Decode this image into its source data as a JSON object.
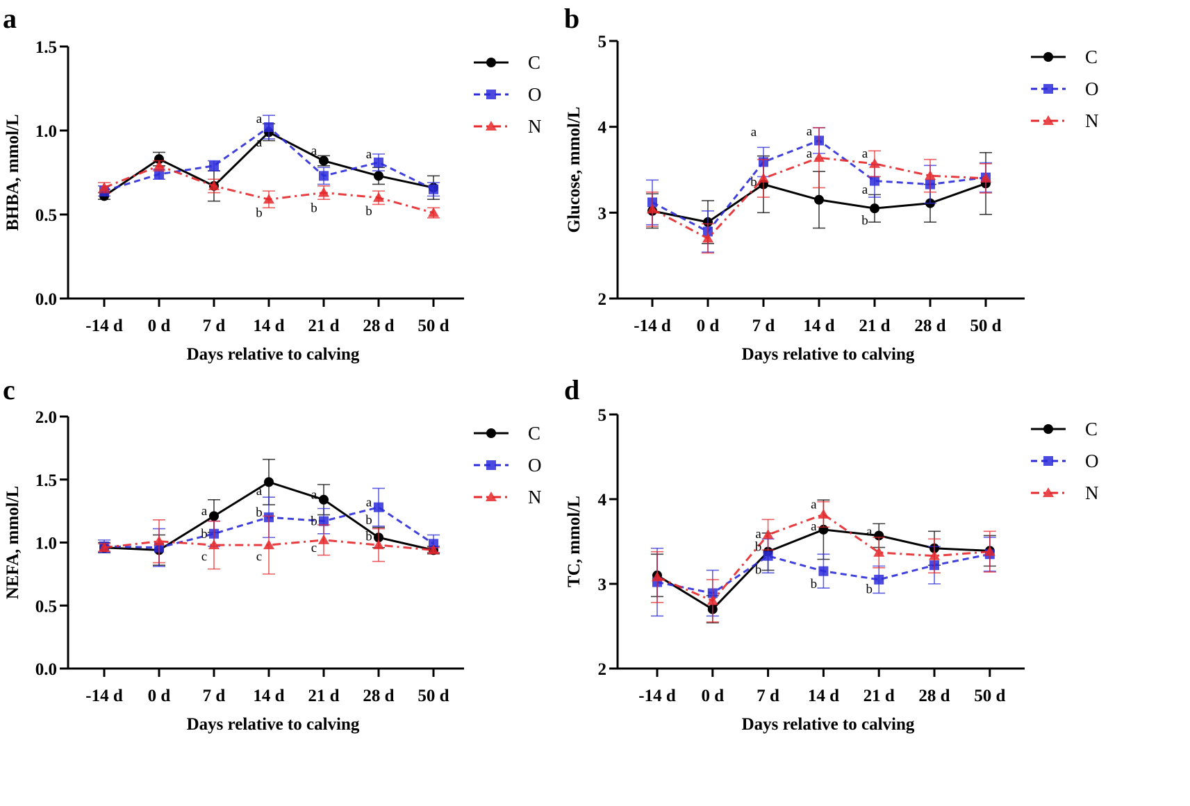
{
  "chart_data": [
    {
      "type": "line",
      "panel_label": "a",
      "xlabel": "Days relative to calving",
      "ylabel": "BHBA, mmol/L",
      "ylim": [
        0,
        1.5
      ],
      "yticks": [
        "0.0",
        "0.5",
        "1.0",
        "1.5"
      ],
      "categories": [
        "-14 d",
        "0 d",
        "7 d",
        "14 d",
        "21 d",
        "28 d",
        "50 d"
      ],
      "legend_position": "top-right",
      "series": [
        {
          "name": "C",
          "color": "#000000",
          "marker": "circle",
          "dash": "solid",
          "values": [
            0.61,
            0.83,
            0.67,
            0.99,
            0.82,
            0.73,
            0.66
          ],
          "errors": [
            0.02,
            0.04,
            0.09,
            0.05,
            0.03,
            0.05,
            0.07
          ]
        },
        {
          "name": "O",
          "color": "#2b2bd9",
          "marker": "square",
          "dash": "dashed",
          "values": [
            0.64,
            0.74,
            0.79,
            1.02,
            0.73,
            0.81,
            0.65
          ],
          "errors": [
            0.03,
            0.03,
            0.03,
            0.07,
            0.05,
            0.05,
            0.04
          ]
        },
        {
          "name": "N",
          "color": "#e5282b",
          "marker": "triangle",
          "dash": "dashdot",
          "values": [
            0.66,
            0.79,
            0.67,
            0.59,
            0.63,
            0.6,
            0.51
          ],
          "errors": [
            0.03,
            0.03,
            0.04,
            0.05,
            0.04,
            0.04,
            0.03
          ]
        }
      ],
      "annotations": [
        {
          "text": "a",
          "x": "14 d",
          "y": 1.07
        },
        {
          "text": "a",
          "x": "14 d",
          "y": 0.93
        },
        {
          "text": "b",
          "x": "14 d",
          "y": 0.51
        },
        {
          "text": "a",
          "x": "21 d",
          "y": 0.88
        },
        {
          "text": "b",
          "x": "21 d",
          "y": 0.54
        },
        {
          "text": "a",
          "x": "28 d",
          "y": 0.86
        },
        {
          "text": "b",
          "x": "28 d",
          "y": 0.52
        }
      ]
    },
    {
      "type": "line",
      "panel_label": "b",
      "xlabel": "Days relative to calving",
      "ylabel": "Glucose, mmol/L",
      "ylim": [
        2,
        5
      ],
      "yticks": [
        "2",
        "3",
        "4",
        "5"
      ],
      "categories": [
        "-14 d",
        "0 d",
        "7 d",
        "14 d",
        "21 d",
        "28 d",
        "50 d"
      ],
      "legend_position": "top-right",
      "series": [
        {
          "name": "C",
          "color": "#000000",
          "marker": "circle",
          "dash": "solid",
          "values": [
            3.02,
            2.89,
            3.33,
            3.15,
            3.05,
            3.11,
            3.34
          ],
          "errors": [
            0.2,
            0.25,
            0.33,
            0.33,
            0.16,
            0.22,
            0.36
          ]
        },
        {
          "name": "O",
          "color": "#2b2bd9",
          "marker": "square",
          "dash": "dashed",
          "values": [
            3.12,
            2.78,
            3.59,
            3.84,
            3.37,
            3.33,
            3.41
          ],
          "errors": [
            0.26,
            0.24,
            0.17,
            0.15,
            0.19,
            0.22,
            0.17
          ]
        },
        {
          "name": "N",
          "color": "#e5282b",
          "marker": "triangle",
          "dash": "dashdot",
          "values": [
            3.04,
            2.7,
            3.4,
            3.64,
            3.57,
            3.43,
            3.4
          ],
          "errors": [
            0.2,
            0.17,
            0.22,
            0.35,
            0.15,
            0.19,
            0.17
          ]
        }
      ],
      "annotations": [
        {
          "text": "a",
          "x": "7 d",
          "y": 3.94
        },
        {
          "text": "b",
          "x": "7 d",
          "y": 3.36
        },
        {
          "text": "a",
          "x": "14 d",
          "y": 3.95
        },
        {
          "text": "a",
          "x": "14 d",
          "y": 3.69
        },
        {
          "text": "a",
          "x": "21 d",
          "y": 3.69
        },
        {
          "text": "a",
          "x": "21 d",
          "y": 3.27
        },
        {
          "text": "b",
          "x": "21 d",
          "y": 2.91
        }
      ]
    },
    {
      "type": "line",
      "panel_label": "c",
      "xlabel": "Days relative to calving",
      "ylabel": "NEFA, mmol/L",
      "ylim": [
        0,
        2
      ],
      "yticks": [
        "0.0",
        "0.5",
        "1.0",
        "1.5",
        "2.0"
      ],
      "categories": [
        "-14 d",
        "0 d",
        "7 d",
        "14 d",
        "21 d",
        "28 d",
        "50 d"
      ],
      "legend_position": "top-right",
      "series": [
        {
          "name": "C",
          "color": "#000000",
          "marker": "circle",
          "dash": "solid",
          "values": [
            0.96,
            0.94,
            1.21,
            1.48,
            1.34,
            1.04,
            0.94
          ],
          "errors": [
            0.04,
            0.12,
            0.13,
            0.18,
            0.12,
            0.08,
            0.03
          ]
        },
        {
          "name": "O",
          "color": "#2b2bd9",
          "marker": "square",
          "dash": "dashed",
          "values": [
            0.97,
            0.96,
            1.07,
            1.2,
            1.17,
            1.28,
            0.99
          ],
          "errors": [
            0.05,
            0.15,
            0.1,
            0.16,
            0.1,
            0.15,
            0.07
          ]
        },
        {
          "name": "N",
          "color": "#e5282b",
          "marker": "triangle",
          "dash": "dashdot",
          "values": [
            0.96,
            1.01,
            0.98,
            0.98,
            1.02,
            0.98,
            0.94
          ],
          "errors": [
            0.03,
            0.17,
            0.19,
            0.23,
            0.12,
            0.13,
            0.02
          ]
        }
      ],
      "annotations": [
        {
          "text": "a",
          "x": "7 d",
          "y": 1.25
        },
        {
          "text": "b",
          "x": "7 d",
          "y": 1.07
        },
        {
          "text": "c",
          "x": "7 d",
          "y": 0.89
        },
        {
          "text": "a",
          "x": "14 d",
          "y": 1.41
        },
        {
          "text": "b",
          "x": "14 d",
          "y": 1.24
        },
        {
          "text": "c",
          "x": "14 d",
          "y": 0.89
        },
        {
          "text": "a",
          "x": "21 d",
          "y": 1.38
        },
        {
          "text": "b",
          "x": "21 d",
          "y": 1.17
        },
        {
          "text": "c",
          "x": "21 d",
          "y": 0.96
        },
        {
          "text": "a",
          "x": "28 d",
          "y": 1.32
        },
        {
          "text": "b",
          "x": "28 d",
          "y": 1.18
        },
        {
          "text": "b",
          "x": "28 d",
          "y": 1.05
        }
      ]
    },
    {
      "type": "line",
      "panel_label": "d",
      "xlabel": "Days relative to calving",
      "ylabel": "TC, mmol/L",
      "ylim": [
        2,
        5
      ],
      "yticks": [
        "2",
        "3",
        "4",
        "5"
      ],
      "categories": [
        "-14 d",
        "0 d",
        "7 d",
        "14 d",
        "21 d",
        "28 d",
        "50 d"
      ],
      "legend_position": "top-right",
      "series": [
        {
          "name": "C",
          "color": "#000000",
          "marker": "circle",
          "dash": "solid",
          "values": [
            3.1,
            2.7,
            3.38,
            3.64,
            3.57,
            3.42,
            3.39
          ],
          "errors": [
            0.25,
            0.16,
            0.22,
            0.35,
            0.14,
            0.2,
            0.18
          ]
        },
        {
          "name": "O",
          "color": "#2b2bd9",
          "marker": "square",
          "dash": "dashed",
          "values": [
            3.02,
            2.89,
            3.33,
            3.15,
            3.05,
            3.22,
            3.35
          ],
          "errors": [
            0.4,
            0.27,
            0.2,
            0.2,
            0.16,
            0.22,
            0.2
          ]
        },
        {
          "name": "N",
          "color": "#e5282b",
          "marker": "triangle",
          "dash": "dashdot",
          "values": [
            3.08,
            2.8,
            3.58,
            3.82,
            3.37,
            3.33,
            3.38
          ],
          "errors": [
            0.3,
            0.25,
            0.18,
            0.15,
            0.18,
            0.2,
            0.24
          ]
        }
      ],
      "annotations": [
        {
          "text": "a",
          "x": "7 d",
          "y": 3.59
        },
        {
          "text": "b",
          "x": "7 d",
          "y": 3.44
        },
        {
          "text": "b",
          "x": "7 d",
          "y": 3.17
        },
        {
          "text": "a",
          "x": "14 d",
          "y": 3.94
        },
        {
          "text": "a",
          "x": "14 d",
          "y": 3.68
        },
        {
          "text": "b",
          "x": "14 d",
          "y": 3.0
        },
        {
          "text": "a",
          "x": "21 d",
          "y": 3.62
        },
        {
          "text": "b",
          "x": "21 d",
          "y": 2.94
        }
      ]
    }
  ]
}
